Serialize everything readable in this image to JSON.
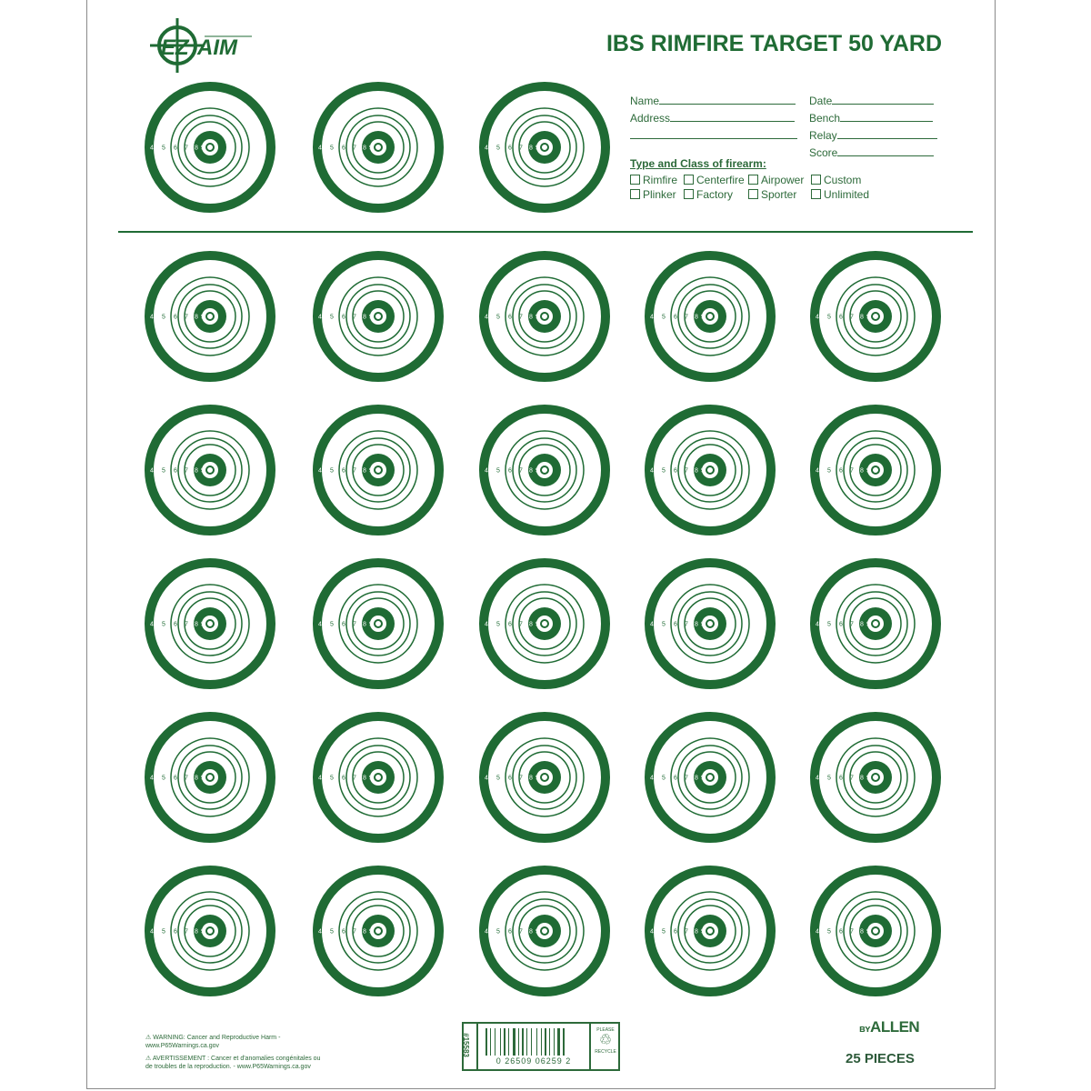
{
  "title": "IBS RIMFIRE TARGET 50 YARD",
  "logo_text": "EZ AIM",
  "form": {
    "name": "Name",
    "address": "Address",
    "date": "Date",
    "bench": "Bench",
    "relay": "Relay",
    "score": "Score",
    "section_title": "Type and Class of firearm:",
    "options": [
      "Rimfire",
      "Centerfire",
      "Airpower",
      "Custom",
      "Plinker",
      "Factory",
      "Sporter",
      "Unlimited"
    ]
  },
  "target_rings": [
    "4",
    "5",
    "6",
    "7",
    "8",
    "9"
  ],
  "target_count_top": 3,
  "target_count_grid": 25,
  "colors": {
    "green": "#1f6b34",
    "ink": "#2d6a3a"
  },
  "footer": {
    "warning_en": "WARNING: Cancer and Reproductive Harm - www.P65Warnings.ca.gov",
    "warning_fr": "AVERTISSEMENT : Cancer et d'anomalies congénitales ou de troubles de la reproduction. - www.P65Warnings.ca.gov",
    "sku": "#15583",
    "upc": "0 26509 06259 2",
    "recycle_top": "PLEASE",
    "recycle_bottom": "RECYCLE",
    "brand": "ALLEN",
    "pieces": "25 PIECES"
  }
}
